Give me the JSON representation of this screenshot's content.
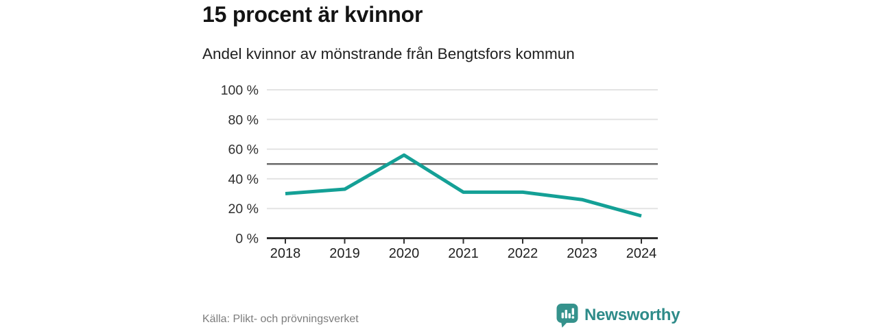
{
  "header": {
    "title": "15 procent är kvinnor",
    "subtitle": "Andel kvinnor av mönstrande från Bengtsfors kommun"
  },
  "chart_data": {
    "type": "line",
    "title": "15 procent är kvinnor",
    "subtitle": "Andel kvinnor av mönstrande från Bengtsfors kommun",
    "categories": [
      "2018",
      "2019",
      "2020",
      "2021",
      "2022",
      "2023",
      "2024"
    ],
    "series": [
      {
        "name": "Andel kvinnor av mönstrande",
        "values": [
          30,
          33,
          56,
          31,
          31,
          26,
          15
        ]
      }
    ],
    "xlabel": "",
    "ylabel": "",
    "ylim": [
      0,
      100
    ],
    "yticks": [
      0,
      20,
      40,
      60,
      80,
      100
    ],
    "ytick_suffix": " %",
    "reference_line": 50,
    "grid": true,
    "legend": "none",
    "line_color": "#14a096",
    "gridline_color": "#e3e3e3",
    "reference_line_color": "#696969",
    "axis_color": "#2f2f2f"
  },
  "footer": {
    "source": "Källa: Plikt- och prövningsverket",
    "brand": "Newsworthy"
  },
  "icons": {
    "logo": "bar-chart-speech-bubble-icon"
  },
  "colors": {
    "accent_teal": "#14a096",
    "logo_teal": "#35928c",
    "wordmark_teal": "#2e8b89",
    "background": "#ffffff"
  }
}
